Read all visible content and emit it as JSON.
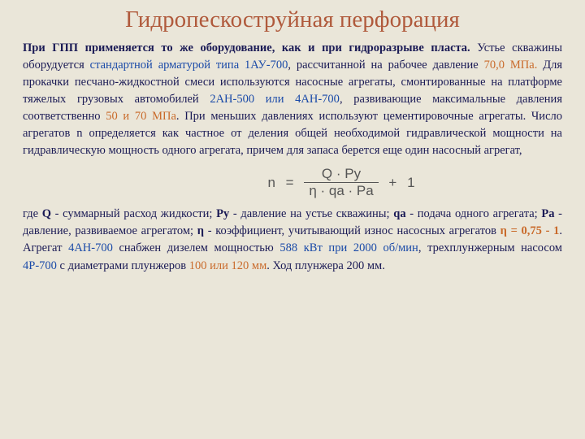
{
  "title": "Гидропескоструйная перфорация",
  "p1_a": "При ГПП применяется то же оборудование, как и при гидроразрыве пласта.",
  "p1_b": " Устье скважины оборудуется ",
  "p1_c": "стандартной арматурой типа 1АУ-700",
  "p1_d": ", рассчитанной на рабочее давление ",
  "p1_e": "70,0 МПа.",
  "p1_f": " Для прокачки песчано-жидкостной смеси используются насосные агрегаты, смонтированные на платформе тяжелых грузовых автомобилей ",
  "p1_g": "2АН-500 или 4АН-700",
  "p1_h": ", развивающие максимальные давления соответственно ",
  "p1_i": "50 и 70 МПа",
  "p1_j": ". При меньших давлениях используют цементировочные агрегаты. Число агрегатов n определяется как частное от деления общей необходимой гидравлической мощности на гидравлическую мощность одного агрегата, причем для запаса берется еще один насосный агрегат,",
  "formula": {
    "n": "n",
    "eq": "=",
    "num": "Q · Py",
    "den": "η · qa · Pa",
    "plus": "+",
    "one": "1"
  },
  "p2_a": "где ",
  "p2_b": "Q",
  "p2_c": " - суммарный расход жидкости; ",
  "p2_d": "Ру",
  "p2_e": " - давление на устье скважины; ",
  "p2_f": "qа",
  "p2_g": " - подача одного агрегата; ",
  "p2_h": "Ра",
  "p2_i": " - давление, развиваемое агрегатом; ",
  "p2_j": "η",
  "p2_k": " - коэффициент, учитывающий износ насосных агрегатов ",
  "p2_l": "η = 0,75 - 1",
  "p2_m": ". Агрегат ",
  "p2_n": "4АН-700",
  "p2_o": " снабжен дизелем мощностью ",
  "p2_p": "588 кВт при 2000 об/мин",
  "p2_q": ", трехплунжерным насосом ",
  "p2_r": "4Р-700",
  "p2_s": " с диаметрами плунжеров ",
  "p2_t": "100 или 120 мм",
  "p2_u": ". Ход плунжера 200 мм.",
  "colors": {
    "background": "#eae6d9",
    "title": "#b05a3c",
    "body": "#1a1a55",
    "accent_orange": "#c96a2a",
    "accent_blue": "#1a4aa8",
    "formula": "#555555"
  }
}
